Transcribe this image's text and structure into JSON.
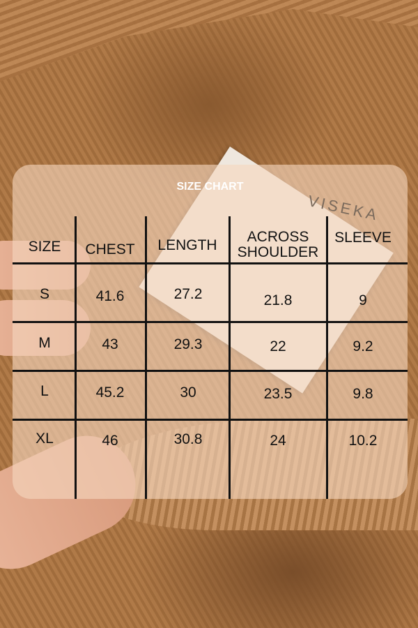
{
  "title": "SIZE CHART",
  "brand_label": "VISEKA",
  "columns": [
    "SIZE",
    "CHEST",
    "LENGTH",
    "ACROSS SHOULDER",
    "SLEEVE"
  ],
  "column_lines": {
    "across": [
      "ACROSS",
      "SHOULDER"
    ]
  },
  "rows": [
    [
      "S",
      "41.6",
      "27.2",
      "21.8",
      "9"
    ],
    [
      "M",
      "43",
      "29.3",
      "22",
      "9.2"
    ],
    [
      "L",
      "45.2",
      "30",
      "23.5",
      "9.8"
    ],
    [
      "XL",
      "46",
      "30.8",
      "24",
      "10.2"
    ]
  ],
  "colors": {
    "panel": "#f6d6be",
    "text": "#111111",
    "title": "#ffffff",
    "fabric": "#a87444"
  }
}
